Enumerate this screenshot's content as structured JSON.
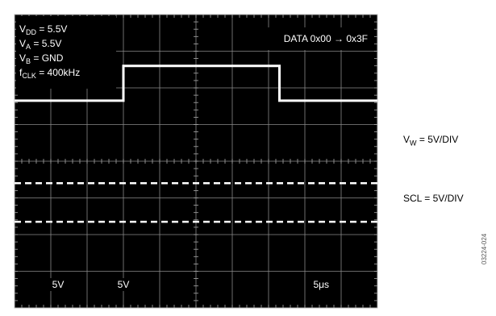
{
  "chart_data": {
    "type": "line",
    "title": "",
    "x_unit": "div",
    "xlim": [
      0,
      10
    ],
    "ylim": [
      0,
      8
    ],
    "grid": true,
    "conditions": {
      "vdd": {
        "sym": "V",
        "sub": "DD",
        "rest": " = 5.5V"
      },
      "va": {
        "sym": "V",
        "sub": "A",
        "rest": " = 5.5V"
      },
      "vb": {
        "sym": "V",
        "sub": "B",
        "rest": " = GND"
      },
      "fclk": {
        "sym": "f",
        "sub": "CLK",
        "rest": " = 400kHz"
      }
    },
    "annotation": "DATA 0x00 → 0x3F",
    "scale_labels": [
      {
        "text": "5V",
        "x": 1.2
      },
      {
        "text": "5V",
        "x": 3.0
      },
      {
        "text": "5μs",
        "x": 8.45
      }
    ],
    "channel_labels": {
      "vw": {
        "sym": "V",
        "sub": "W",
        "rest": " = 5V/DIV"
      },
      "scl": {
        "text": "SCL = 5V/DIV"
      }
    },
    "series": [
      {
        "x": [
          0,
          3.0,
          3.0,
          7.3,
          7.3,
          10
        ],
        "y": [
          5.65,
          5.65,
          6.6,
          6.6,
          5.65,
          5.65
        ],
        "color": "#ffffff"
      },
      {
        "dashed": true,
        "level": 3.4,
        "color": "#ffffff"
      },
      {
        "dashed": true,
        "level": 2.35,
        "color": "#ffffff"
      }
    ],
    "figure_code": "03224-024"
  }
}
